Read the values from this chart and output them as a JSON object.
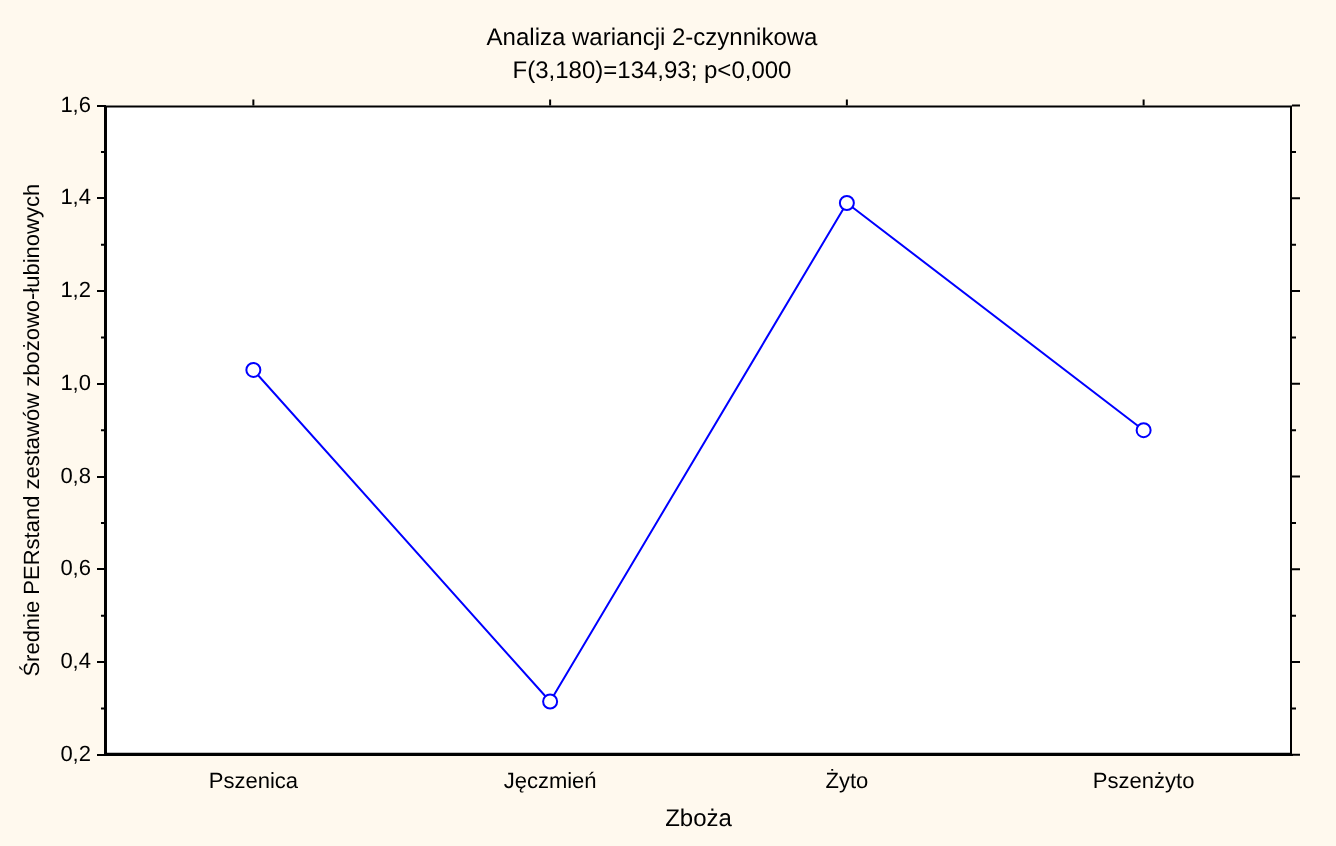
{
  "chart_data": {
    "type": "line",
    "title": "Analiza wariancji 2-czynnikowa",
    "subtitle": "F(3,180)=134,93; p<0,000",
    "xlabel": "Zboża",
    "ylabel": "Średnie PERstand zestawów zbożowo-łubinowych",
    "categories": [
      "Pszenica",
      "Jęczmień",
      "Żyto",
      "Pszenżyto"
    ],
    "series": [
      {
        "color": "#0000ff",
        "values": [
          1.03,
          0.315,
          1.39,
          0.9
        ]
      }
    ],
    "ylim": [
      0.2,
      1.6
    ],
    "yticks": [
      {
        "value": 0.2,
        "label": "0,2"
      },
      {
        "value": 0.4,
        "label": "0,4"
      },
      {
        "value": 0.6,
        "label": "0,6"
      },
      {
        "value": 0.8,
        "label": "0,8"
      },
      {
        "value": 1.0,
        "label": "1,0"
      },
      {
        "value": 1.2,
        "label": "1,2"
      },
      {
        "value": 1.4,
        "label": "1,4"
      },
      {
        "value": 1.6,
        "label": "1,6"
      }
    ],
    "grid": false,
    "legend": false,
    "marker": "circle",
    "line_style": "solid"
  }
}
